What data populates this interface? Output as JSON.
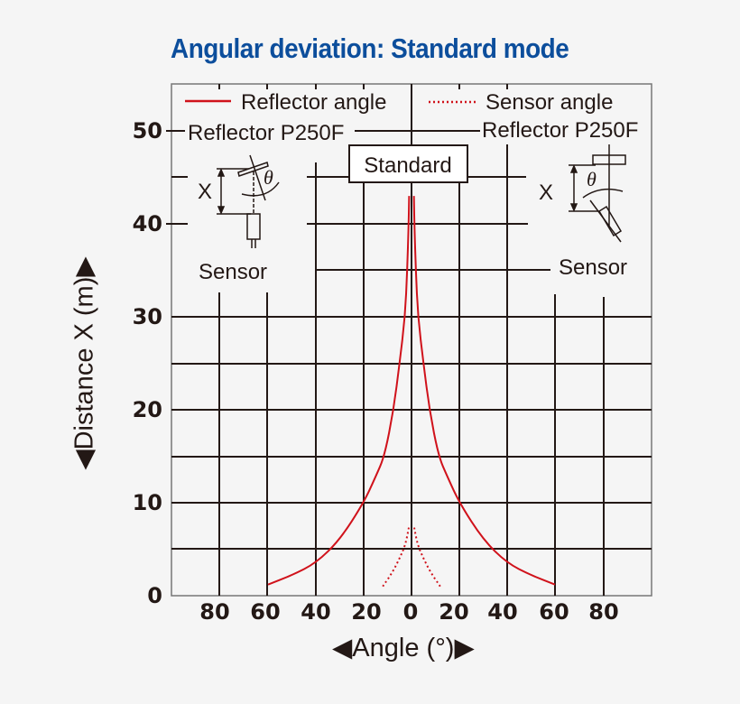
{
  "title": "Angular deviation: Standard mode",
  "colors": {
    "title": "#0c4e9c",
    "curve": "#d0121b",
    "grid": "#231815",
    "background": "#f5f5f5"
  },
  "legend": {
    "reflector_angle": "Reflector angle",
    "sensor_angle": "Sensor angle"
  },
  "annotations": {
    "left_reflector": "Reflector P250F",
    "right_reflector": "Reflector P250F",
    "left_sensor": "Sensor",
    "right_sensor": "Sensor",
    "mode_box": "Standard",
    "x_symbol": "X",
    "theta_symbol": "θ"
  },
  "axes": {
    "ylabel": "◀Distance X (m)▶",
    "xlabel": "◀Angle (°)▶",
    "yticks": [
      "0",
      "10",
      "20",
      "30",
      "40",
      "50"
    ],
    "xticks": [
      "80",
      "60",
      "40",
      "20",
      "0",
      "20",
      "40",
      "60",
      "80"
    ]
  },
  "chart_data": {
    "type": "line",
    "title": "Angular deviation: Standard mode",
    "xlabel": "Angle (°)",
    "ylabel": "Distance X (m)",
    "xlim": [
      -100,
      100
    ],
    "ylim": [
      0,
      55
    ],
    "x_tick_labels": [
      "80",
      "60",
      "40",
      "20",
      "0",
      "20",
      "40",
      "60",
      "80"
    ],
    "y_tick_labels": [
      "0",
      "10",
      "20",
      "30",
      "40",
      "50"
    ],
    "grid": true,
    "legend": [
      "Reflector angle",
      "Sensor angle"
    ],
    "series": [
      {
        "name": "Reflector angle",
        "style": "solid",
        "color": "#d0121b",
        "points_right": [
          [
            60,
            1.2
          ],
          [
            50,
            2.2
          ],
          [
            40,
            3.5
          ],
          [
            30,
            6
          ],
          [
            20,
            10
          ],
          [
            15,
            12.8
          ],
          [
            11.3,
            15
          ],
          [
            7.5,
            20
          ],
          [
            5,
            25
          ],
          [
            2.7,
            30
          ],
          [
            1.8,
            35
          ],
          [
            1.2,
            40
          ],
          [
            1.0,
            43
          ]
        ],
        "symmetric": true
      },
      {
        "name": "Sensor angle",
        "style": "dotted",
        "color": "#d0121b",
        "points_right": [
          [
            12,
            1.0
          ],
          [
            8,
            2.5
          ],
          [
            5,
            4
          ],
          [
            2.5,
            5.5
          ],
          [
            1,
            7.5
          ]
        ],
        "symmetric": true
      }
    ],
    "annotations": [
      "Standard",
      "Reflector P250F",
      "Sensor"
    ]
  }
}
